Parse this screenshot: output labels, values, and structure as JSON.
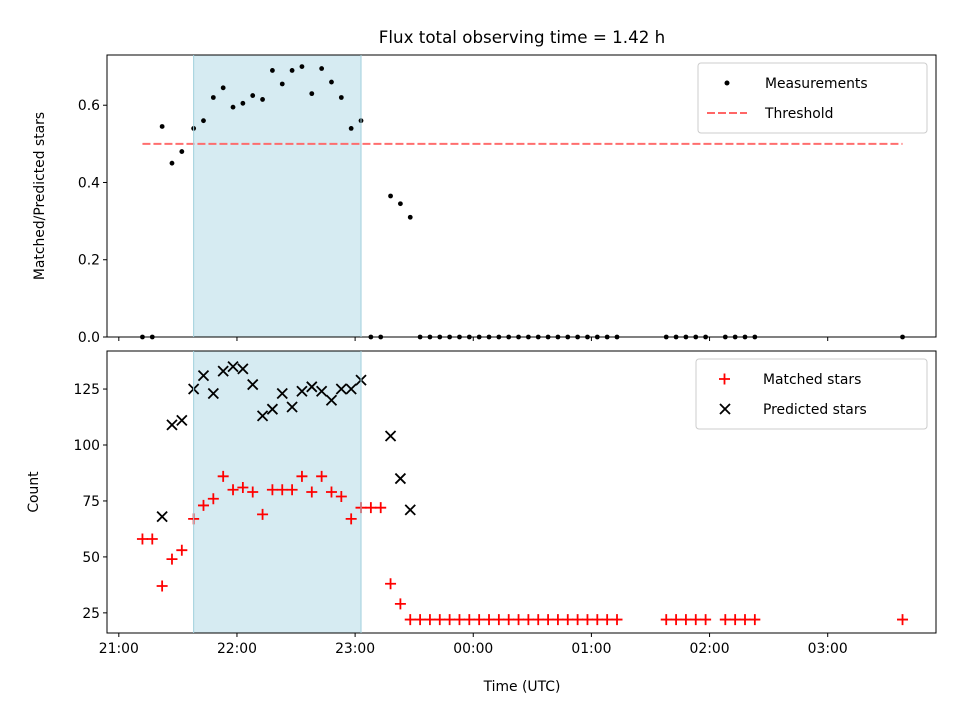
{
  "chart_data": [
    {
      "type": "scatter",
      "title": "Flux total observing time = 1.42 h",
      "xlabel": "",
      "ylabel": "Matched/Predicted stars",
      "xlim": [
        "20:54",
        "03:55"
      ],
      "ylim": [
        0,
        0.73
      ],
      "yticks": [
        0.0,
        0.2,
        0.4,
        0.6
      ],
      "ytick_labels": [
        "0.0",
        "0.2",
        "0.4",
        "0.6"
      ],
      "x_ticks": [
        "21:00",
        "22:00",
        "23:00",
        "00:00",
        "01:00",
        "02:00",
        "03:00"
      ],
      "legend_position": "upper right",
      "shaded_interval": {
        "start": "21:38",
        "end": "23:03",
        "color": "#add8e6"
      },
      "series": [
        {
          "name": "Measurements",
          "marker": "dot",
          "color": "#000000",
          "x": [
            "21:12",
            "21:17",
            "21:22",
            "21:27",
            "21:32",
            "21:38",
            "21:43",
            "21:48",
            "21:53",
            "21:58",
            "22:03",
            "22:08",
            "22:13",
            "22:18",
            "22:23",
            "22:28",
            "22:33",
            "22:38",
            "22:43",
            "22:48",
            "22:53",
            "22:58",
            "23:03",
            "23:08",
            "23:13",
            "23:18",
            "23:23",
            "23:28",
            "23:33",
            "23:38",
            "23:43",
            "23:48",
            "23:53",
            "23:58",
            "00:03",
            "00:08",
            "00:13",
            "00:18",
            "00:23",
            "00:28",
            "00:33",
            "00:38",
            "00:43",
            "00:48",
            "00:53",
            "00:58",
            "01:03",
            "01:08",
            "01:13",
            "01:38",
            "01:43",
            "01:48",
            "01:53",
            "01:58",
            "02:08",
            "02:13",
            "02:18",
            "02:23",
            "03:38"
          ],
          "y": [
            0.0,
            0.0,
            0.545,
            0.45,
            0.48,
            0.54,
            0.56,
            0.62,
            0.645,
            0.595,
            0.605,
            0.625,
            0.615,
            0.69,
            0.655,
            0.69,
            0.7,
            0.63,
            0.695,
            0.66,
            0.62,
            0.54,
            0.56,
            0.0,
            0.0,
            0.365,
            0.345,
            0.31,
            0.0,
            0.0,
            0.0,
            0.0,
            0.0,
            0.0,
            0.0,
            0.0,
            0.0,
            0.0,
            0.0,
            0.0,
            0.0,
            0.0,
            0.0,
            0.0,
            0.0,
            0.0,
            0.0,
            0.0,
            0.0,
            0.0,
            0.0,
            0.0,
            0.0,
            0.0,
            0.0,
            0.0,
            0.0,
            0.0,
            0.0
          ]
        },
        {
          "name": "Threshold",
          "style": "dashed-line",
          "color": "#ff6666",
          "x": [
            "21:12",
            "03:38"
          ],
          "y": [
            0.5,
            0.5
          ]
        }
      ]
    },
    {
      "type": "scatter",
      "title": "",
      "xlabel": "Time (UTC)",
      "ylabel": "Count",
      "xlim": [
        "20:54",
        "03:55"
      ],
      "ylim": [
        16,
        142
      ],
      "yticks": [
        25,
        50,
        75,
        100,
        125
      ],
      "ytick_labels": [
        "25",
        "50",
        "75",
        "100",
        "125"
      ],
      "x_ticks": [
        "21:00",
        "22:00",
        "23:00",
        "00:00",
        "01:00",
        "02:00",
        "03:00"
      ],
      "legend_position": "upper right",
      "shaded_interval": {
        "start": "21:38",
        "end": "23:03",
        "color": "#add8e6"
      },
      "series": [
        {
          "name": "Matched stars",
          "marker": "plus",
          "color": "#ff0000",
          "x": [
            "21:12",
            "21:17",
            "21:22",
            "21:27",
            "21:32",
            "21:38",
            "21:43",
            "21:48",
            "21:53",
            "21:58",
            "22:03",
            "22:08",
            "22:13",
            "22:18",
            "22:23",
            "22:28",
            "22:33",
            "22:38",
            "22:43",
            "22:48",
            "22:53",
            "22:58",
            "23:03",
            "23:08",
            "23:13",
            "23:18",
            "23:23",
            "23:28",
            "23:33",
            "23:38",
            "23:43",
            "23:48",
            "23:53",
            "23:58",
            "00:03",
            "00:08",
            "00:13",
            "00:18",
            "00:23",
            "00:28",
            "00:33",
            "00:38",
            "00:43",
            "00:48",
            "00:53",
            "00:58",
            "01:03",
            "01:08",
            "01:13",
            "01:38",
            "01:43",
            "01:48",
            "01:53",
            "01:58",
            "02:08",
            "02:13",
            "02:18",
            "02:23",
            "03:38"
          ],
          "y": [
            58,
            58,
            37,
            49,
            53,
            67,
            73,
            76,
            86,
            80,
            81,
            79,
            69,
            80,
            80,
            80,
            86,
            79,
            86,
            79,
            77,
            67,
            72,
            72,
            72,
            38,
            29,
            22,
            22,
            22,
            22,
            22,
            22,
            22,
            22,
            22,
            22,
            22,
            22,
            22,
            22,
            22,
            22,
            22,
            22,
            22,
            22,
            22,
            22,
            22,
            22,
            22,
            22,
            22,
            22,
            22,
            22,
            22,
            22
          ]
        },
        {
          "name": "Predicted stars",
          "marker": "x",
          "color": "#000000",
          "x": [
            "21:22",
            "21:27",
            "21:32",
            "21:38",
            "21:43",
            "21:48",
            "21:53",
            "21:58",
            "22:03",
            "22:08",
            "22:13",
            "22:18",
            "22:23",
            "22:28",
            "22:33",
            "22:38",
            "22:43",
            "22:48",
            "22:53",
            "22:58",
            "23:03",
            "23:18",
            "23:23",
            "23:28"
          ],
          "y": [
            68,
            109,
            111,
            125,
            131,
            123,
            133,
            135,
            134,
            127,
            113,
            116,
            123,
            117,
            124,
            126,
            124,
            120,
            125,
            125,
            129,
            104,
            85,
            71
          ]
        }
      ]
    }
  ]
}
